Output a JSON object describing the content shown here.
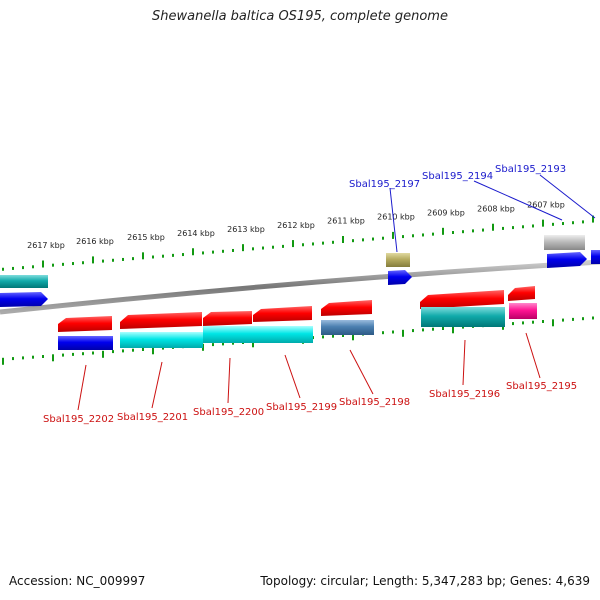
{
  "header": {
    "title": "Shewanella baltica OS195, complete genome"
  },
  "footer": {
    "accession": "Accession: NC_009997",
    "summary": "Topology: circular; Length: 5,347,283 bp; Genes: 4,639"
  },
  "colors": {
    "tick": "#119911",
    "label_top": "#1a1acc",
    "label_bottom": "#cc1111",
    "backbone": "#888888"
  },
  "chart_data": {
    "type": "genome-map",
    "scale_unit": "kbp",
    "scale_labels": [
      "2617 kbp",
      "2616 kbp",
      "2615 kbp",
      "2614 kbp",
      "2613 kbp",
      "2612 kbp",
      "2611 kbp",
      "2610 kbp",
      "2609 kbp",
      "2608 kbp",
      "2607 kbp"
    ],
    "scale_values": [
      2617,
      2616,
      2615,
      2614,
      2613,
      2612,
      2611,
      2610,
      2609,
      2608,
      2607
    ],
    "genes_labeled_top": [
      "Sbal195_2197",
      "Sbal195_2194",
      "Sbal195_2193"
    ],
    "genes_labeled_bottom": [
      "Sbal195_2202",
      "Sbal195_2201",
      "Sbal195_2200",
      "Sbal195_2199",
      "Sbal195_2198",
      "Sbal195_2196",
      "Sbal195_2195"
    ]
  }
}
